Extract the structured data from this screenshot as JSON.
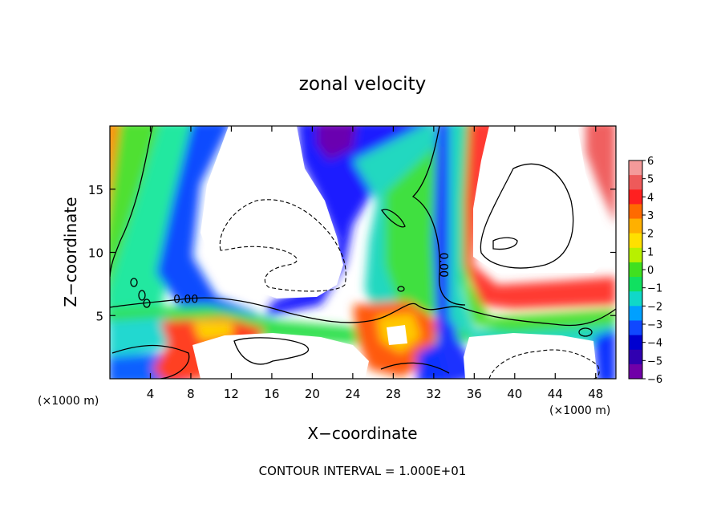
{
  "chart_data": {
    "type": "heatmap",
    "title": "zonal velocity",
    "xlabel": "X−coordinate",
    "ylabel": "Z−coordinate",
    "footer": "CONTOUR INTERVAL = 1.000E+01",
    "x_unit_left": "(×1000 m)",
    "x_unit_right": "(×1000 m)",
    "xlim": [
      0,
      50
    ],
    "ylim": [
      0,
      20
    ],
    "x_ticks": [
      4,
      8,
      12,
      16,
      20,
      24,
      28,
      32,
      36,
      40,
      44,
      48
    ],
    "x_tick_labels": [
      "4",
      "8",
      "12",
      "16",
      "20",
      "24",
      "28",
      "32",
      "36",
      "40",
      "44",
      "48"
    ],
    "y_ticks": [
      5,
      10,
      15
    ],
    "y_tick_labels": [
      "5",
      "10",
      "15"
    ],
    "contour_labels": [
      {
        "text": "0.00",
        "x": 7.5,
        "z": 6.0,
        "rotate": 0
      },
      {
        "text": "0.00",
        "x": 32.6,
        "z": 9.0,
        "rotate": 90
      }
    ],
    "colorbar": {
      "min": -6,
      "max": 6,
      "labels": [
        "6",
        "5",
        "4",
        "3",
        "2",
        "1",
        "0",
        "−1",
        "−2",
        "−3",
        "−4",
        "−5",
        "−6"
      ],
      "colors": [
        "#f49a9a",
        "#ee5a5a",
        "#ff2020",
        "#ff6a00",
        "#ffb000",
        "#ffe000",
        "#b8f000",
        "#40e020",
        "#10e060",
        "#10d8c8",
        "#00a0ff",
        "#1048ff",
        "#0000d0",
        "#3000b0",
        "#7000a8"
      ]
    }
  }
}
